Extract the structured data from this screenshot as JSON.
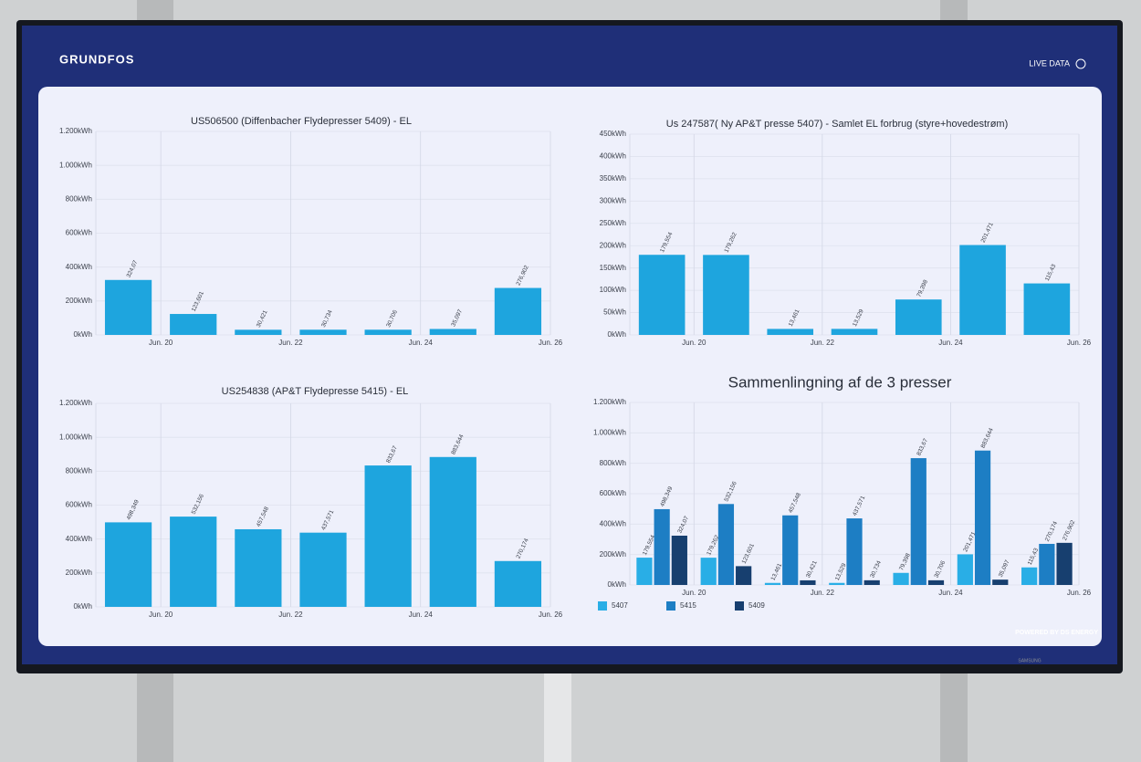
{
  "header": {
    "brand": "GRUNDFOS",
    "live": "LIVE DATA",
    "powered": "POWERED BY DS ENERGY",
    "tv": "SAMSUNG"
  },
  "chart_data": [
    {
      "type": "bar",
      "title": "US506500 (Diffenbacher Flydepresser 5409) - EL",
      "categories": [
        null,
        null,
        null,
        null,
        null,
        null,
        null
      ],
      "x_labels": [
        "Jun. 20",
        "Jun. 22",
        "Jun. 24",
        "Jun. 26"
      ],
      "values": [
        324.07,
        123.601,
        30.421,
        30.734,
        30.706,
        35.097,
        276.902
      ],
      "value_labels": [
        "324,07",
        "123,601",
        "30,421",
        "30,734",
        "30,706",
        "35,097",
        "276,902"
      ],
      "color": "#1ea5de",
      "ylim": [
        0,
        1200
      ],
      "yticks": [
        {
          "value": 0,
          "label": "0kWh"
        },
        {
          "value": 200,
          "label": "200kWh"
        },
        {
          "value": 400,
          "label": "400kWh"
        },
        {
          "value": 600,
          "label": "600kWh"
        },
        {
          "value": 800,
          "label": "800kWh"
        },
        {
          "value": 1000,
          "label": "1.000kWh"
        },
        {
          "value": 1200,
          "label": "1.200kWh"
        }
      ]
    },
    {
      "type": "bar",
      "title": "Us 247587( Ny AP&T presse 5407) - Samlet EL forbrug (styre+hovedestrøm)",
      "categories": [
        null,
        null,
        null,
        null,
        null,
        null,
        null
      ],
      "x_labels": [
        "Jun. 20",
        "Jun. 22",
        "Jun. 24",
        "Jun. 26"
      ],
      "values": [
        179.554,
        179.262,
        13.461,
        13.529,
        79.398,
        201.471,
        115.43
      ],
      "value_labels": [
        "179,554",
        "179,262",
        "13,461",
        "13,529",
        "79,398",
        "201,471",
        "115,43"
      ],
      "color": "#1ea5de",
      "ylim": [
        0,
        450
      ],
      "yticks": [
        {
          "value": 0,
          "label": "0kWh"
        },
        {
          "value": 50,
          "label": "50kWh"
        },
        {
          "value": 100,
          "label": "100kWh"
        },
        {
          "value": 150,
          "label": "150kWh"
        },
        {
          "value": 200,
          "label": "200kWh"
        },
        {
          "value": 250,
          "label": "250kWh"
        },
        {
          "value": 300,
          "label": "300kWh"
        },
        {
          "value": 350,
          "label": "350kWh"
        },
        {
          "value": 400,
          "label": "400kWh"
        },
        {
          "value": 450,
          "label": "450kWh"
        }
      ]
    },
    {
      "type": "bar",
      "title": "US254838 (AP&T Flydepresse 5415) - EL",
      "categories": [
        null,
        null,
        null,
        null,
        null,
        null,
        null
      ],
      "x_labels": [
        "Jun. 20",
        "Jun. 22",
        "Jun. 24",
        "Jun. 26"
      ],
      "values": [
        498.349,
        532.156,
        457.548,
        437.571,
        833.67,
        883.644,
        270.174
      ],
      "value_labels": [
        "498,349",
        "532,156",
        "457,548",
        "437,571",
        "833,67",
        "883,644",
        "270,174"
      ],
      "color": "#1ea5de",
      "ylim": [
        0,
        1200
      ],
      "yticks": [
        {
          "value": 0,
          "label": "0kWh"
        },
        {
          "value": 200,
          "label": "200kWh"
        },
        {
          "value": 400,
          "label": "400kWh"
        },
        {
          "value": 600,
          "label": "600kWh"
        },
        {
          "value": 800,
          "label": "800kWh"
        },
        {
          "value": 1000,
          "label": "1.000kWh"
        },
        {
          "value": 1200,
          "label": "1.200kWh"
        }
      ]
    },
    {
      "type": "grouped-bar",
      "title": "Sammenlingning af de 3 presser",
      "categories": [
        null,
        null,
        null,
        null,
        null,
        null,
        null
      ],
      "x_labels": [
        "Jun. 20",
        "Jun. 22",
        "Jun. 24",
        "Jun. 26"
      ],
      "series": [
        {
          "name": "5407",
          "color": "#29aee6",
          "values": [
            179.554,
            179.262,
            13.461,
            13.529,
            79.398,
            201.471,
            115.43
          ],
          "value_labels": [
            "179,554",
            "179,262",
            "13,461",
            "13,529",
            "79,398",
            "201,471",
            "115,43"
          ]
        },
        {
          "name": "5415",
          "color": "#1d7ec4",
          "values": [
            498.349,
            532.156,
            457.548,
            437.571,
            833.67,
            883.644,
            270.174
          ],
          "value_labels": [
            "498,349",
            "532,156",
            "457,548",
            "437,571",
            "833,67",
            "883,644",
            "270,174"
          ]
        },
        {
          "name": "5409",
          "color": "#173f6f",
          "values": [
            324.07,
            123.601,
            30.421,
            30.734,
            30.706,
            35.097,
            276.902
          ],
          "value_labels": [
            "324,07",
            "123,601",
            "30,421",
            "30,734",
            "30,706",
            "35,097",
            "276,902"
          ]
        }
      ],
      "ylim": [
        0,
        1200
      ],
      "yticks": [
        {
          "value": 0,
          "label": "0kWh"
        },
        {
          "value": 200,
          "label": "200kWh"
        },
        {
          "value": 400,
          "label": "400kWh"
        },
        {
          "value": 600,
          "label": "600kWh"
        },
        {
          "value": 800,
          "label": "800kWh"
        },
        {
          "value": 1000,
          "label": "1.000kWh"
        },
        {
          "value": 1200,
          "label": "1.200kWh"
        }
      ]
    }
  ]
}
